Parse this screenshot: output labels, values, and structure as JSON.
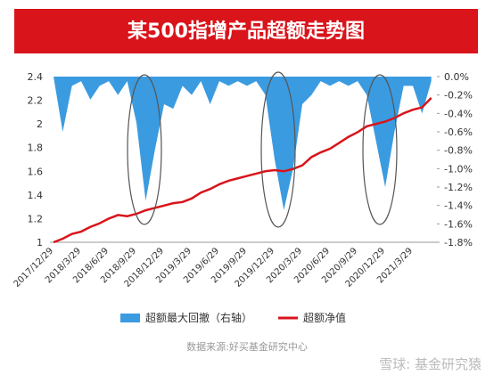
{
  "chart_data": {
    "type": "line",
    "title": "某500指增产品超额走势图",
    "source": "数据来源:好买基金研究中心",
    "watermark": "雪球: 基金研究猿",
    "categories": [
      "2017/12/29",
      null,
      null,
      "2018/3/29",
      null,
      null,
      "2018/6/29",
      null,
      null,
      "2018/9/29",
      null,
      null,
      "2018/12/29",
      null,
      null,
      "2019/3/29",
      null,
      null,
      "2019/6/29",
      null,
      null,
      "2019/9/29",
      null,
      null,
      "2019/12/29",
      null,
      null,
      "2020/3/29",
      null,
      null,
      "2020/6/29",
      null,
      null,
      "2020/9/29",
      null,
      null,
      "2020/12/29",
      null,
      null,
      "2021/3/29",
      null,
      null
    ],
    "series": [
      {
        "name": "超额最大回撤（右轴）",
        "color": "#3b9be0",
        "axis": "y2",
        "kind": "area",
        "values": [
          0,
          -0.6,
          -0.1,
          -0.05,
          -0.25,
          -0.1,
          -0.05,
          -0.2,
          -0.05,
          -0.5,
          -1.35,
          -0.8,
          -0.3,
          -0.35,
          -0.1,
          -0.2,
          -0.05,
          -0.3,
          -0.05,
          -0.1,
          -0.05,
          -0.1,
          -0.05,
          -0.2,
          -0.9,
          -1.45,
          -1.0,
          -0.3,
          -0.2,
          -0.05,
          -0.1,
          -0.05,
          -0.1,
          -0.05,
          -0.2,
          -0.7,
          -1.2,
          -0.6,
          -0.1,
          -0.1,
          -0.4,
          -0.05
        ]
      },
      {
        "name": "超额净值",
        "color": "#d9141b",
        "kind": "line",
        "values": [
          1.0,
          1.03,
          1.07,
          1.09,
          1.13,
          1.16,
          1.2,
          1.23,
          1.22,
          1.24,
          1.27,
          1.29,
          1.31,
          1.33,
          1.34,
          1.37,
          1.42,
          1.45,
          1.49,
          1.52,
          1.54,
          1.56,
          1.58,
          1.6,
          1.61,
          1.6,
          1.62,
          1.65,
          1.72,
          1.76,
          1.79,
          1.84,
          1.89,
          1.93,
          1.98,
          2.0,
          2.02,
          2.05,
          2.09,
          2.12,
          2.14,
          2.22
        ]
      }
    ],
    "ylim": [
      1,
      2.4
    ],
    "yticks": [
      1,
      1.2,
      1.4,
      1.6,
      1.8,
      2,
      2.2,
      2.4
    ],
    "y2lim": [
      -1.8,
      0
    ],
    "y2ticks": [
      {
        "value": 0,
        "label": "0.0%"
      },
      {
        "value": -0.2,
        "label": "-0.2%"
      },
      {
        "value": -0.4,
        "label": "-0.4%"
      },
      {
        "value": -0.6,
        "label": "-0.6%"
      },
      {
        "value": -0.8,
        "label": "-0.8%"
      },
      {
        "value": -1.0,
        "label": "-1.0%"
      },
      {
        "value": -1.2,
        "label": "-1.2%"
      },
      {
        "value": -1.4,
        "label": "-1.4%"
      },
      {
        "value": -1.6,
        "label": "-1.6%"
      },
      {
        "value": -1.8,
        "label": "-1.8%"
      }
    ]
  }
}
